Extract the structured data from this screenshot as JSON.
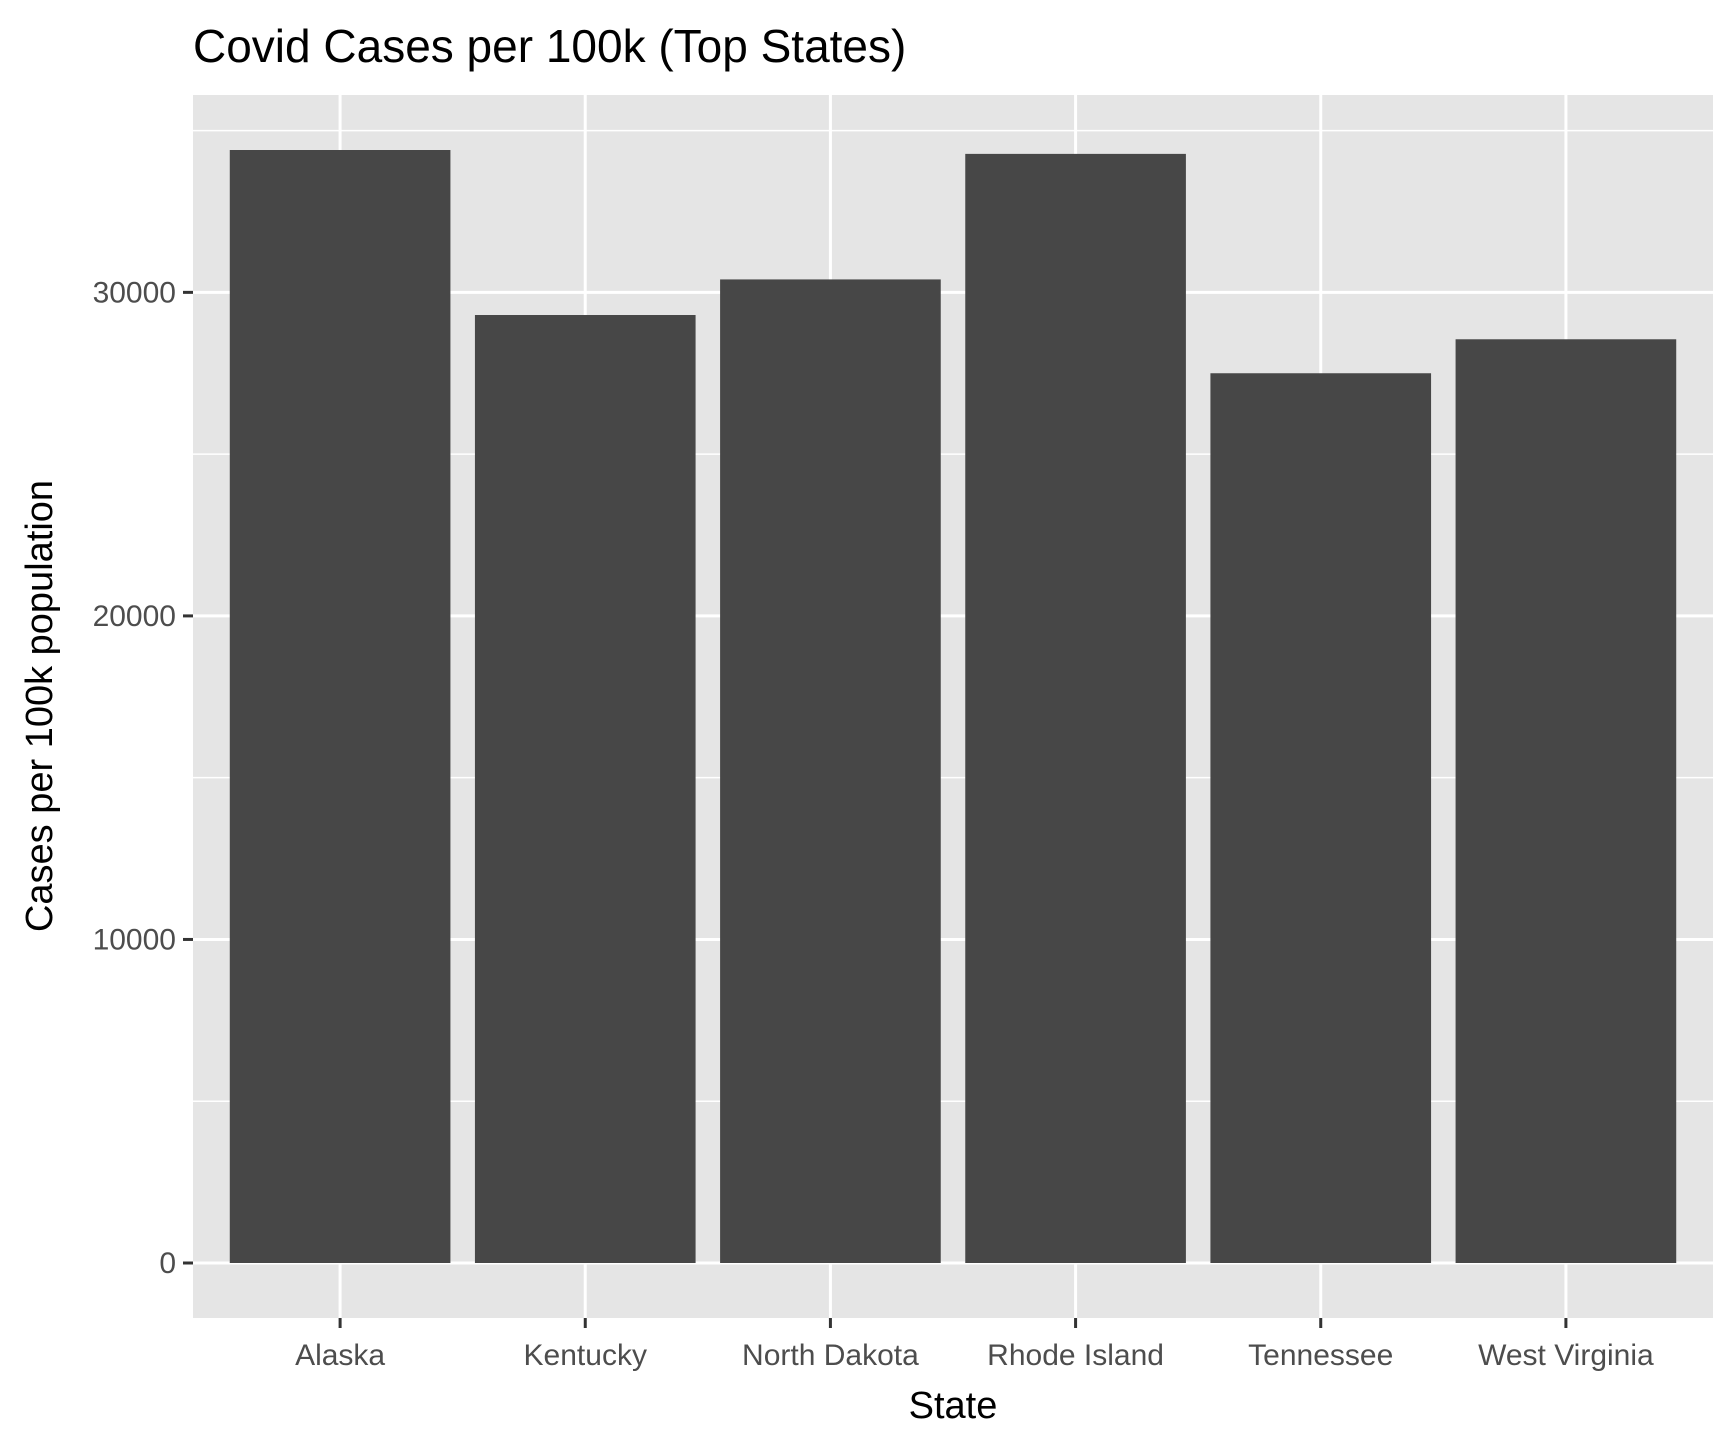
{
  "chart_data": {
    "type": "bar",
    "title": "Covid Cases per 100k (Top States)",
    "xlabel": "State",
    "ylabel": "Cases per 100k population",
    "categories": [
      "Alaska",
      "Kentucky",
      "North Dakota",
      "Rhode Island",
      "Tennessee",
      "West Virginia"
    ],
    "values": [
      34400,
      29300,
      30400,
      34280,
      27500,
      28550
    ],
    "ylim": [
      -1700,
      36100
    ],
    "yticks": [
      0,
      10000,
      20000,
      30000
    ],
    "ytick_labels": [
      "0",
      "10000",
      "20000",
      "30000"
    ],
    "grid": true,
    "colors": {
      "bar": "#474747",
      "panel": "#e5e5e5",
      "grid": "#ffffff",
      "tick": "#333333"
    }
  }
}
